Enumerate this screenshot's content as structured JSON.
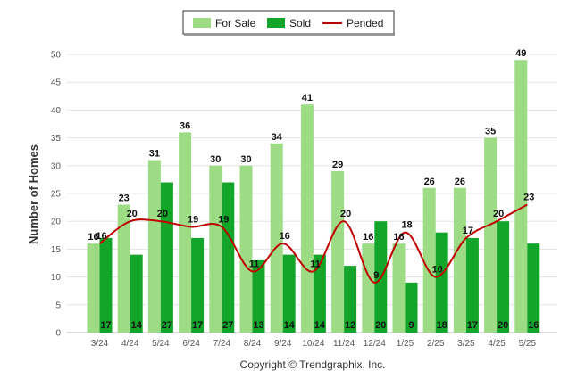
{
  "chart_data": {
    "type": "bar",
    "title": "",
    "xlabel": "",
    "ylabel": "Number of Homes",
    "ylim": [
      0,
      50
    ],
    "yticks": [
      0,
      5,
      10,
      15,
      20,
      25,
      30,
      35,
      40,
      45,
      50
    ],
    "grid": true,
    "legend": "top-center",
    "categories": [
      "3/24",
      "4/24",
      "5/24",
      "6/24",
      "7/24",
      "8/24",
      "9/24",
      "10/24",
      "11/24",
      "12/24",
      "1/25",
      "2/25",
      "3/25",
      "4/25",
      "5/25"
    ],
    "series": [
      {
        "name": "For Sale",
        "type": "bar",
        "color": "#9ddc84",
        "values": [
          16,
          23,
          31,
          36,
          30,
          30,
          34,
          41,
          29,
          16,
          16,
          26,
          26,
          35,
          49
        ]
      },
      {
        "name": "Sold",
        "type": "bar",
        "color": "#13a52a",
        "values": [
          17,
          14,
          27,
          17,
          27,
          13,
          14,
          14,
          12,
          20,
          9,
          18,
          17,
          20,
          16
        ]
      },
      {
        "name": "Pended",
        "type": "line",
        "color": "#c00000",
        "values": [
          16,
          20,
          20,
          19,
          19,
          11,
          16,
          11,
          20,
          9,
          18,
          10,
          17,
          20,
          23
        ]
      }
    ],
    "footer": "Copyright © Trendgraphix, Inc."
  }
}
